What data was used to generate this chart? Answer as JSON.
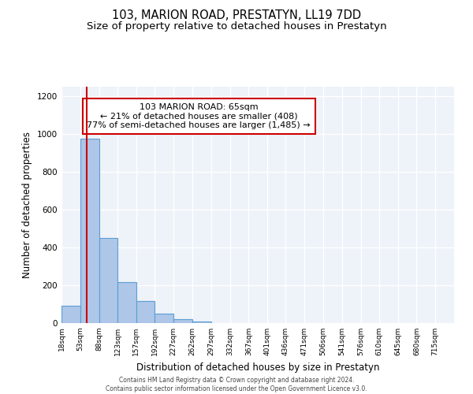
{
  "title": "103, MARION ROAD, PRESTATYN, LL19 7DD",
  "subtitle": "Size of property relative to detached houses in Prestatyn",
  "xlabel": "Distribution of detached houses by size in Prestatyn",
  "ylabel": "Number of detached properties",
  "bar_labels": [
    "18sqm",
    "53sqm",
    "88sqm",
    "123sqm",
    "157sqm",
    "192sqm",
    "227sqm",
    "262sqm",
    "297sqm",
    "332sqm",
    "367sqm",
    "401sqm",
    "436sqm",
    "471sqm",
    "506sqm",
    "541sqm",
    "576sqm",
    "610sqm",
    "645sqm",
    "680sqm",
    "715sqm"
  ],
  "bar_heights": [
    90,
    975,
    450,
    215,
    115,
    50,
    22,
    10,
    0,
    0,
    0,
    0,
    0,
    0,
    0,
    0,
    0,
    0,
    0,
    0,
    0
  ],
  "bar_color": "#aec6e8",
  "bar_edge_color": "#5a9fd4",
  "background_color": "#eef2f9",
  "grid_color": "#ffffff",
  "ylim": [
    0,
    1250
  ],
  "yticks": [
    0,
    200,
    400,
    600,
    800,
    1000,
    1200
  ],
  "bin_edges": [
    18,
    53,
    88,
    123,
    157,
    192,
    227,
    262,
    297,
    332,
    367,
    401,
    436,
    471,
    506,
    541,
    576,
    610,
    645,
    680,
    715
  ],
  "property_line_x": 65,
  "property_line_color": "#cc0000",
  "annotation_line1": "103 MARION ROAD: 65sqm",
  "annotation_line2": "← 21% of detached houses are smaller (408)",
  "annotation_line3": "77% of semi-detached houses are larger (1,485) →",
  "annotation_box_color": "#cc0000",
  "footer_line1": "Contains HM Land Registry data © Crown copyright and database right 2024.",
  "footer_line2": "Contains public sector information licensed under the Open Government Licence v3.0.",
  "title_fontsize": 10.5,
  "subtitle_fontsize": 9.5,
  "tick_fontsize": 6.5,
  "ylabel_fontsize": 8.5,
  "xlabel_fontsize": 8.5,
  "annotation_fontsize": 8.0,
  "footer_fontsize": 5.5
}
